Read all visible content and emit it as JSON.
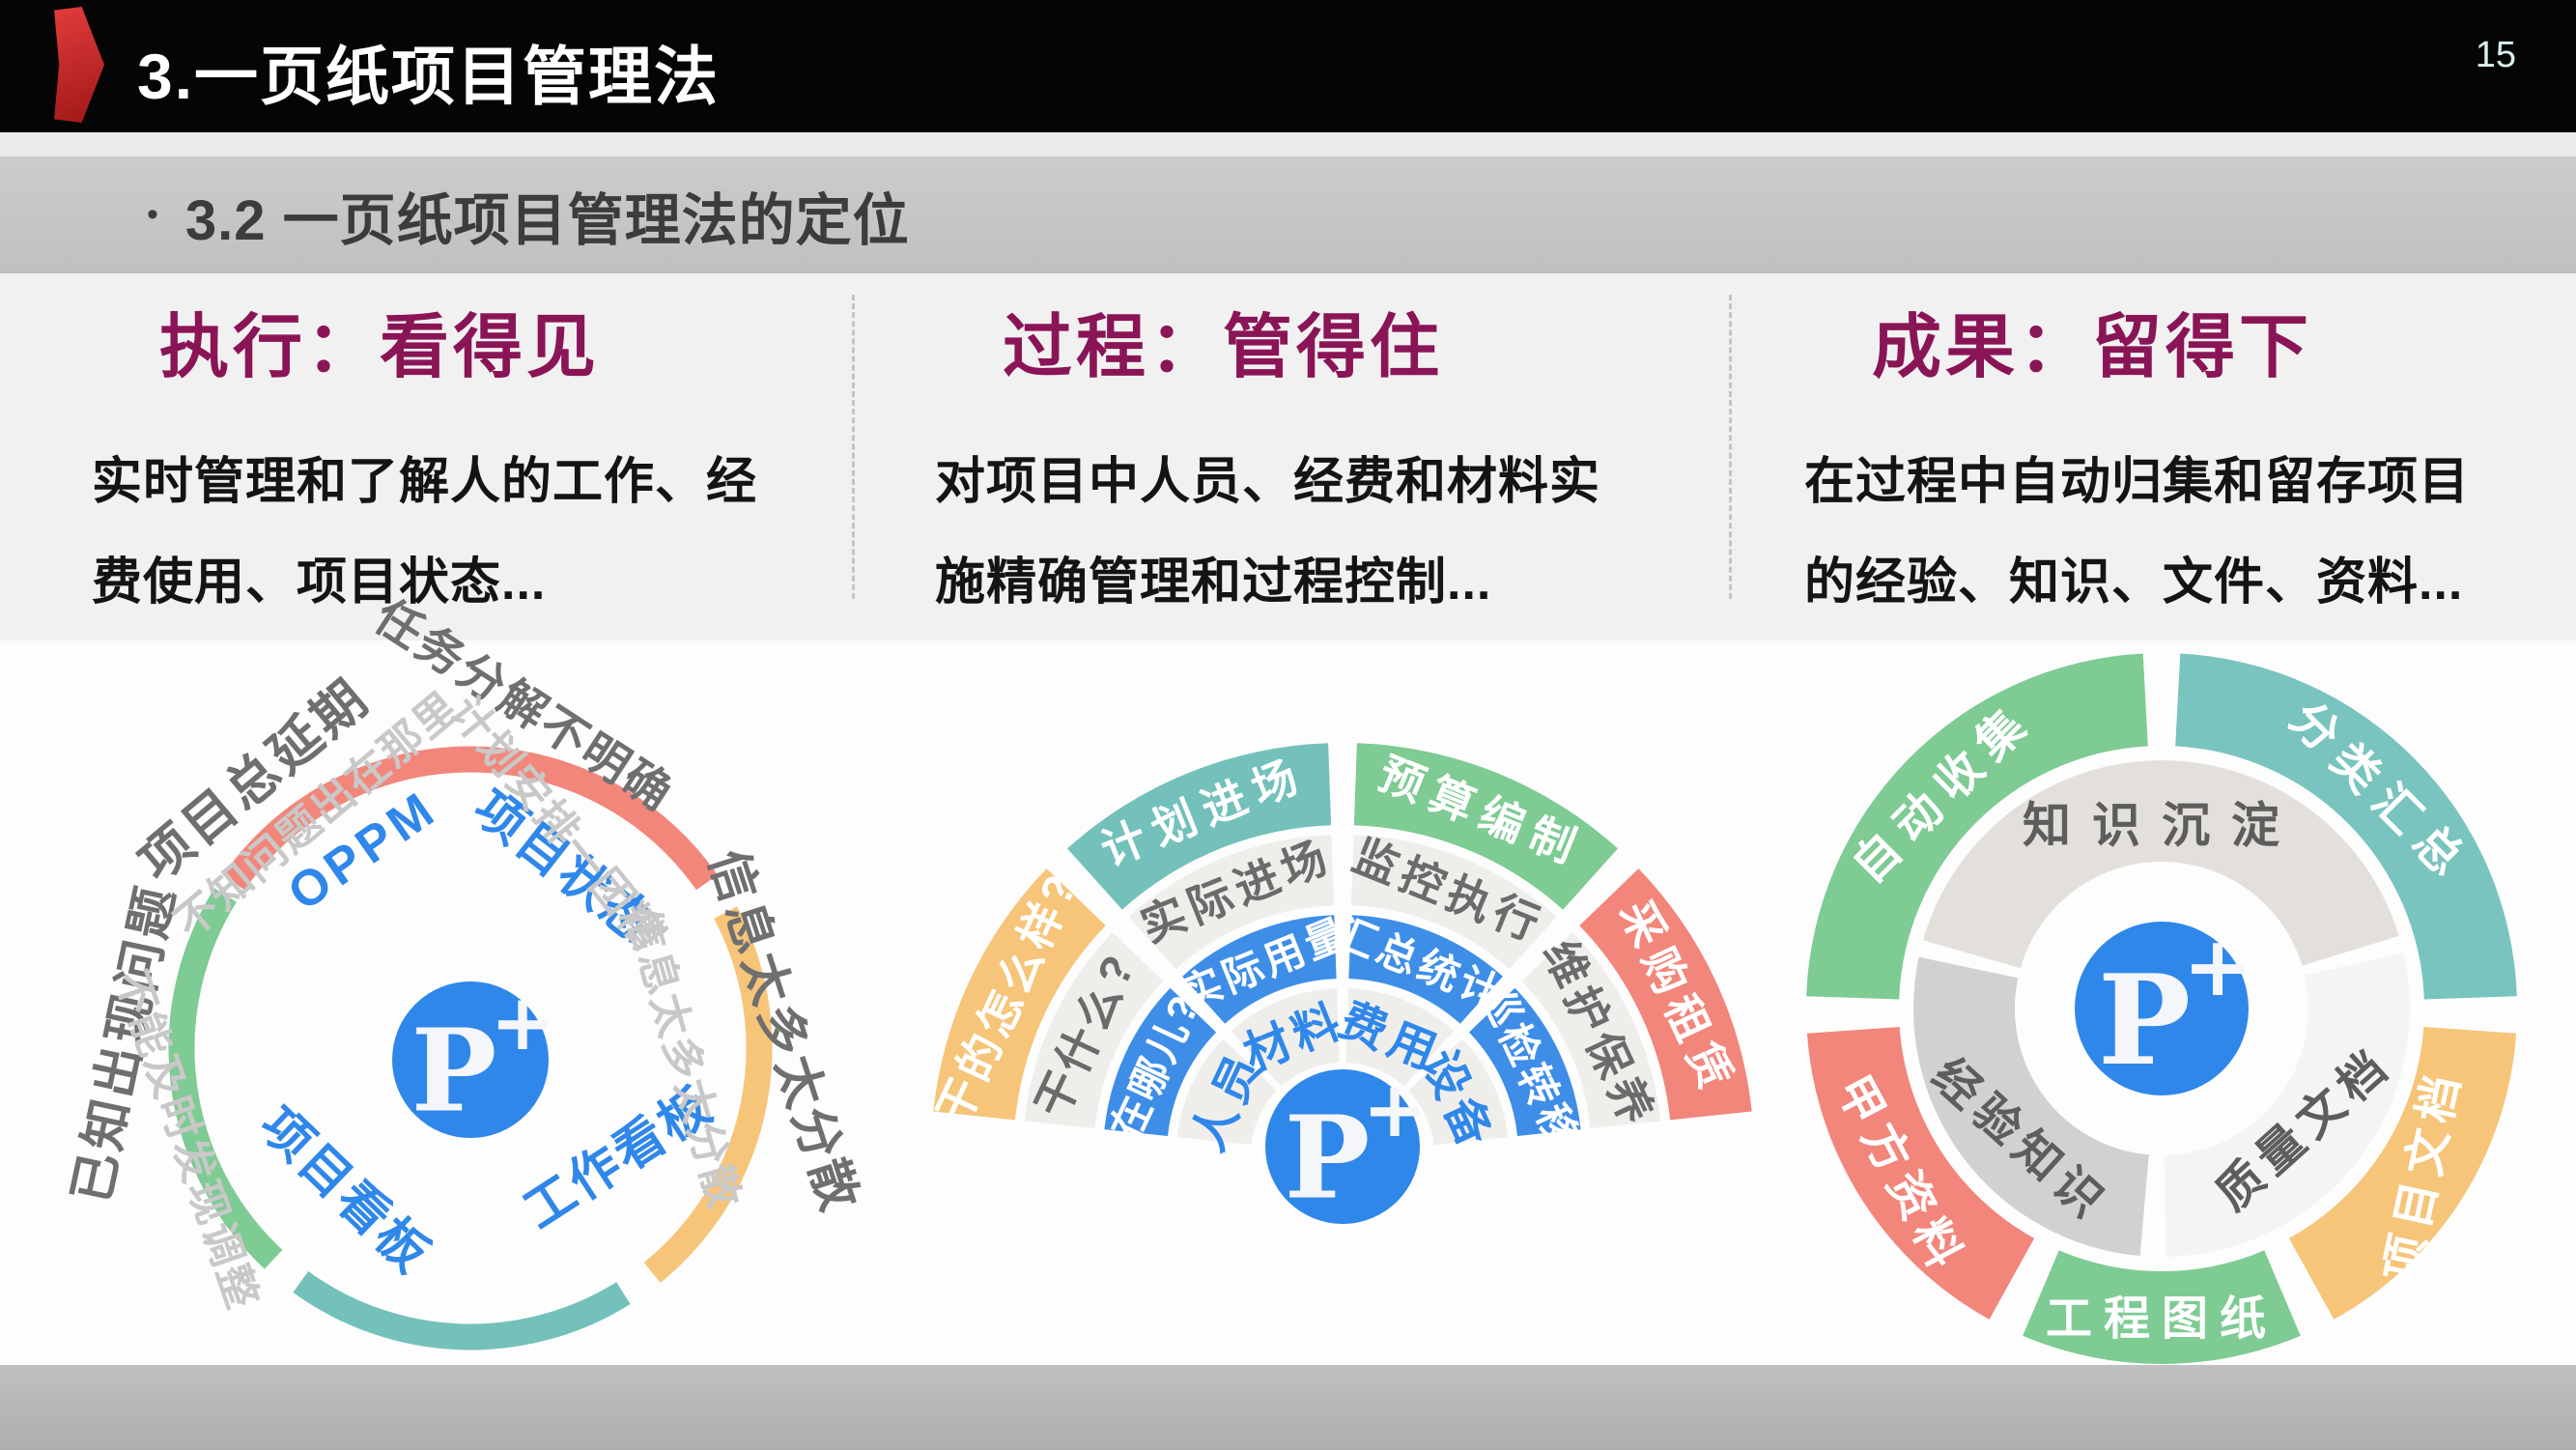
{
  "page": {
    "number": "15"
  },
  "header": {
    "title": "3.一页纸项目管理法"
  },
  "subtitle": {
    "bullet": "•",
    "text": "3.2 一页纸项目管理法的定位"
  },
  "columns": [
    {
      "heading": "执行：看得见",
      "body_line1": "实时管理和了解人的工作、经",
      "body_line2": "费使用、项目状态..."
    },
    {
      "heading": "过程：管得住",
      "body_line1": "对项目中人员、经费和材料实",
      "body_line2": "施精确管理和过程控制..."
    },
    {
      "heading": "成果：留得下",
      "body_line1": "在过程中自动归集和留存项目",
      "body_line2": "的经验、知识、文件、资料..."
    }
  ],
  "diagrams": {
    "logo": {
      "p": "P",
      "plus": "+"
    },
    "left": {
      "ring_labels": [
        "OPPM",
        "项目状态",
        "项目看板",
        "工作看板"
      ],
      "annotations_dark": [
        "项目总延期",
        "任务分解不明确",
        "信息太多太分散",
        "已知出现问题"
      ],
      "annotations_light": [
        "不知问题出在那里",
        "计划安排一团糟",
        "信息太多太分散",
        "不能及时发现调整"
      ]
    },
    "middle": {
      "sectors": [
        {
          "category": "人员",
          "layer2": "在哪儿?",
          "layer3": "干什么?",
          "layer4": "干的怎么样?"
        },
        {
          "category": "材料",
          "layer2": "实际用量",
          "layer3": "实际进场",
          "layer4": "计划进场"
        },
        {
          "category": "费用",
          "layer2": "汇总统计",
          "layer3": "监控执行",
          "layer4": "预算编制"
        },
        {
          "category": "设备",
          "layer2": "巡检转移",
          "layer3": "维护保养",
          "layer4": "采购租赁"
        }
      ]
    },
    "right": {
      "inner_ring": [
        "知识沉淀",
        "质量文档",
        "经验知识"
      ],
      "outer_ring": [
        "自动收集",
        "分类汇总",
        "项目文档",
        "工程图纸",
        "甲方资料"
      ]
    }
  },
  "colors": {
    "accent_red": "#c9252c",
    "heading_maroon": "#8a1556",
    "arc_red": "#f2867b",
    "arc_orange": "#f6c579",
    "arc_teal": "#74c1bb",
    "arc_green": "#7ecb94",
    "blue": "#2f87ea",
    "ring_gray": "#f0eeeb"
  }
}
